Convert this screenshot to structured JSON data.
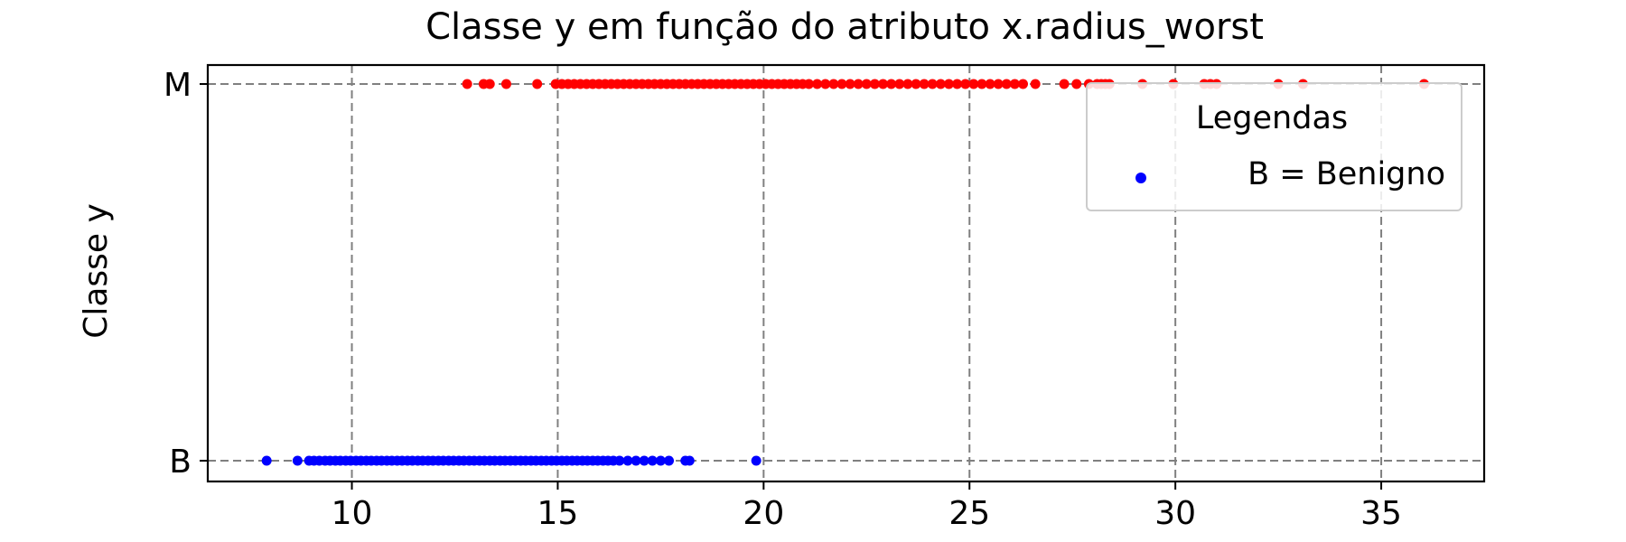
{
  "chart_data": {
    "type": "scatter",
    "title": "Classe y em função do atributo x.radius_worst",
    "xlabel": "",
    "ylabel": "Classe y",
    "xlim": [
      6.5,
      37.5
    ],
    "xticks": [
      10,
      15,
      20,
      25,
      30,
      35
    ],
    "xtick_labels": [
      "10",
      "15",
      "20",
      "25",
      "30",
      "35"
    ],
    "yticks": [
      0,
      1
    ],
    "ytick_labels": [
      "B",
      "M"
    ],
    "grid": true,
    "legend": {
      "title": "Legendas",
      "placement": "top-right",
      "entries": [
        {
          "label": "B = Benigno",
          "color": "#0000ff"
        }
      ]
    },
    "series": [
      {
        "name": "B = Benigno",
        "color": "#0000ff",
        "y": 0,
        "x": [
          7.93,
          8.68,
          8.96,
          9.08,
          9.21,
          9.35,
          9.47,
          9.6,
          9.72,
          9.85,
          9.97,
          10.1,
          10.22,
          10.35,
          10.47,
          10.6,
          10.72,
          10.85,
          10.97,
          11.1,
          11.22,
          11.35,
          11.47,
          11.6,
          11.72,
          11.85,
          11.97,
          12.1,
          12.22,
          12.35,
          12.47,
          12.6,
          12.72,
          12.85,
          12.97,
          13.1,
          13.22,
          13.35,
          13.47,
          13.6,
          13.72,
          13.85,
          13.97,
          14.1,
          14.22,
          14.35,
          14.47,
          14.6,
          14.72,
          14.85,
          14.97,
          15.1,
          15.22,
          15.35,
          15.47,
          15.6,
          15.72,
          15.85,
          15.97,
          16.1,
          16.22,
          16.35,
          16.5,
          16.7,
          16.9,
          17.1,
          17.3,
          17.5,
          17.7,
          18.1,
          18.2,
          19.82
        ]
      },
      {
        "name": "",
        "color": "#ff0000",
        "y": 1,
        "x": [
          12.8,
          13.2,
          13.35,
          13.75,
          14.5,
          14.95,
          15.1,
          15.25,
          15.4,
          15.55,
          15.7,
          15.85,
          16.0,
          16.15,
          16.3,
          16.45,
          16.6,
          16.75,
          16.9,
          17.05,
          17.2,
          17.35,
          17.5,
          17.65,
          17.8,
          17.95,
          18.1,
          18.25,
          18.4,
          18.55,
          18.7,
          18.85,
          19.0,
          19.15,
          19.3,
          19.45,
          19.6,
          19.75,
          19.9,
          20.05,
          20.2,
          20.35,
          20.5,
          20.65,
          20.8,
          20.95,
          21.1,
          21.3,
          21.5,
          21.7,
          21.9,
          22.1,
          22.3,
          22.5,
          22.7,
          22.9,
          23.1,
          23.3,
          23.5,
          23.7,
          23.9,
          24.1,
          24.3,
          24.5,
          24.7,
          24.9,
          25.1,
          25.3,
          25.5,
          25.7,
          25.9,
          26.1,
          26.3,
          26.6,
          27.3,
          27.6,
          27.9,
          28.1,
          28.2,
          28.3,
          28.4,
          29.2,
          29.95,
          30.7,
          30.85,
          31.0,
          32.5,
          33.1,
          36.04
        ]
      }
    ]
  }
}
